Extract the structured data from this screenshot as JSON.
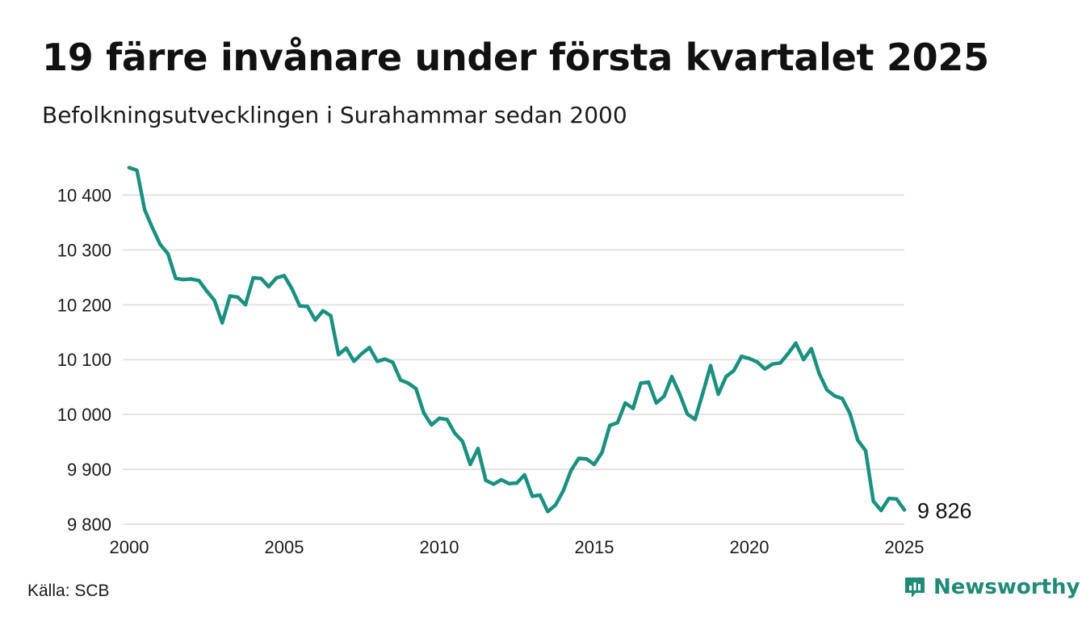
{
  "header": {
    "title": "19 färre invånare under första kvartalet 2025",
    "subtitle": "Befolkningsutvecklingen i Surahammar sedan 2000"
  },
  "footer": {
    "source": "Källa: SCB",
    "brand": "Newsworthy",
    "brand_icon": "bar-chart-icon"
  },
  "colors": {
    "line": "#1a9080",
    "grid": "#e3e3e3",
    "brand": "#1f8a75"
  },
  "chart_data": {
    "type": "line",
    "title": "19 färre invånare under första kvartalet 2025",
    "subtitle": "Befolkningsutvecklingen i Surahammar sedan 2000",
    "xlabel": "",
    "ylabel": "",
    "xlim": [
      2000,
      2025
    ],
    "ylim": [
      9800,
      10450
    ],
    "grid": true,
    "x_ticks": [
      2000,
      2005,
      2010,
      2015,
      2020,
      2025
    ],
    "x_tick_labels": [
      "2000",
      "2005",
      "2010",
      "2015",
      "2020",
      "2025"
    ],
    "y_ticks": [
      9800,
      9900,
      10000,
      10100,
      10200,
      10300,
      10400
    ],
    "y_tick_labels": [
      "9 800",
      "9 900",
      "10 000",
      "10 100",
      "10 200",
      "10 300",
      "10 400"
    ],
    "end_label": "9 826",
    "series": [
      {
        "x": [
          2000.0,
          2000.25,
          2000.5,
          2000.75,
          2001.0,
          2001.25,
          2001.5,
          2001.75,
          2002.0,
          2002.25,
          2002.5,
          2002.75,
          2003.0,
          2003.25,
          2003.5,
          2003.75,
          2004.0,
          2004.25,
          2004.5,
          2004.75,
          2005.0,
          2005.25,
          2005.5,
          2005.75,
          2006.0,
          2006.25,
          2006.5,
          2006.75,
          2007.0,
          2007.25,
          2007.5,
          2007.75,
          2008.0,
          2008.25,
          2008.5,
          2008.75,
          2009.0,
          2009.25,
          2009.5,
          2009.75,
          2010.0,
          2010.25,
          2010.5,
          2010.75,
          2011.0,
          2011.25,
          2011.5,
          2011.75,
          2012.0,
          2012.25,
          2012.5,
          2012.75,
          2013.0,
          2013.25,
          2013.5,
          2013.75,
          2014.0,
          2014.25,
          2014.5,
          2014.75,
          2015.0,
          2015.25,
          2015.5,
          2015.75,
          2016.0,
          2016.25,
          2016.5,
          2016.75,
          2017.0,
          2017.25,
          2017.5,
          2017.75,
          2018.0,
          2018.25,
          2018.5,
          2018.75,
          2019.0,
          2019.25,
          2019.5,
          2019.75,
          2020.0,
          2020.25,
          2020.5,
          2020.75,
          2021.0,
          2021.25,
          2021.5,
          2021.75,
          2022.0,
          2022.25,
          2022.5,
          2022.75,
          2023.0,
          2023.25,
          2023.5,
          2023.75,
          2024.0,
          2024.25,
          2024.5,
          2024.75,
          2025.0
        ],
        "values": [
          10450,
          10445,
          10373,
          10340,
          10310,
          10293,
          10248,
          10246,
          10247,
          10244,
          10225,
          10208,
          10167,
          10216,
          10214,
          10200,
          10249,
          10248,
          10233,
          10249,
          10253,
          10229,
          10198,
          10197,
          10172,
          10189,
          10180,
          10109,
          10121,
          10097,
          10111,
          10122,
          10097,
          10101,
          10095,
          10063,
          10057,
          10047,
          10003,
          9981,
          9993,
          9991,
          9966,
          9951,
          9909,
          9938,
          9880,
          9873,
          9881,
          9874,
          9875,
          9890,
          9851,
          9853,
          9823,
          9835,
          9861,
          9898,
          9920,
          9919,
          9909,
          9931,
          9980,
          9985,
          10021,
          10011,
          10057,
          10059,
          10021,
          10033,
          10069,
          10038,
          10001,
          9991,
          10039,
          10089,
          10037,
          10069,
          10080,
          10106,
          10102,
          10096,
          10083,
          10092,
          10094,
          10111,
          10130,
          10100,
          10120,
          10075,
          10045,
          10034,
          10029,
          10001,
          9953,
          9934,
          9842,
          9825,
          9847,
          9846,
          9826
        ]
      }
    ]
  }
}
